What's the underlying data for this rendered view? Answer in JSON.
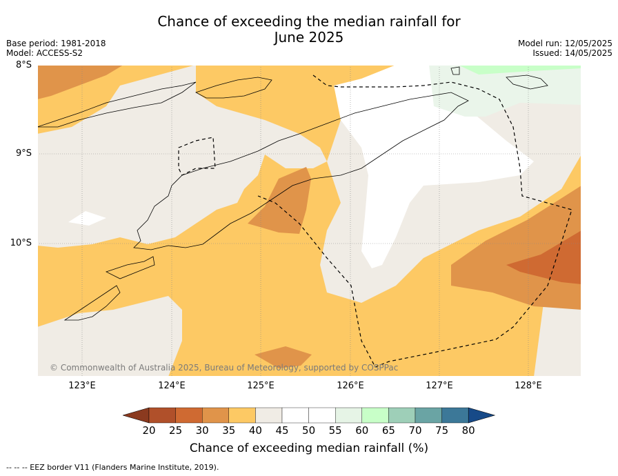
{
  "title_line1": "Chance of exceeding the median rainfall for",
  "title_line2": "June 2025",
  "base_period": "Base period: 1981-2018",
  "model": "Model: ACCESS-S2",
  "model_run": "Model run: 12/05/2025",
  "issued": "Issued: 14/05/2025",
  "lat_labels": [
    "8°S",
    "9°S",
    "10°S"
  ],
  "lon_labels": [
    "123°E",
    "124°E",
    "125°E",
    "126°E",
    "127°E",
    "128°E"
  ],
  "copyright": "© Commonwealth of Australia 2025, Bureau of Meteorology, supported by COSPPac",
  "colorbar": {
    "title": "Chance of exceeding median rainfall (%)",
    "ticks": [
      "20",
      "25",
      "30",
      "35",
      "40",
      "45",
      "50",
      "55",
      "60",
      "65",
      "70",
      "75",
      "80"
    ],
    "colors": [
      "#8b3a1f",
      "#b0502a",
      "#cf6a32",
      "#e0944a",
      "#fdc964",
      "#f0ece5",
      "#ffffff",
      "#ffffff",
      "#e6f4e6",
      "#c8ffc8",
      "#9ecfb8",
      "#6aa4a4",
      "#3c7898",
      "#174a88"
    ]
  },
  "footnote": "--  --  -- EEZ border V11 (Flanders Marine Institute, 2019)."
}
